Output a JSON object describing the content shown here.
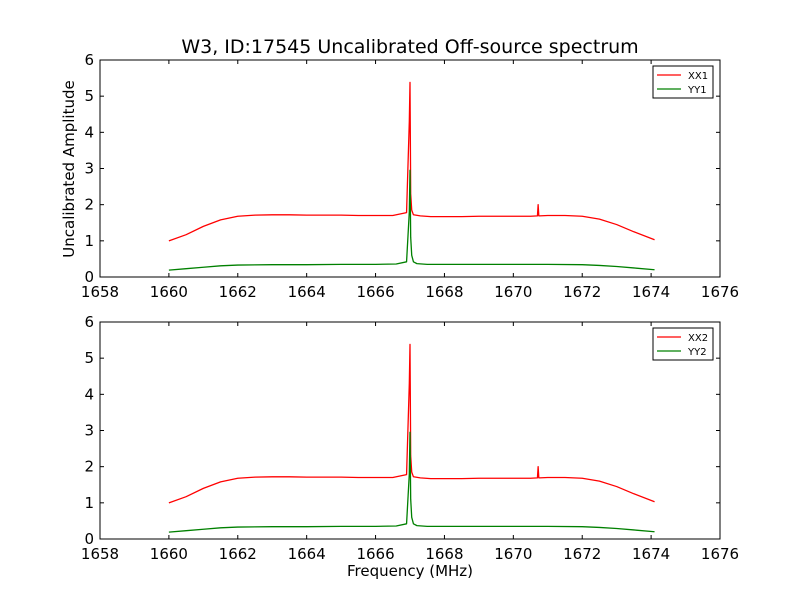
{
  "figure": {
    "title": "W3, ID:17545 Uncalibrated Off-source spectrum",
    "ylabel": "Uncalibrated Amplitude",
    "xlabel": "Frequency (MHz)"
  },
  "chart_data": [
    {
      "type": "line",
      "xlim": [
        1658,
        1676
      ],
      "ylim": [
        0,
        6
      ],
      "xticks": [
        1658,
        1660,
        1662,
        1664,
        1666,
        1668,
        1670,
        1672,
        1674,
        1676
      ],
      "yticks": [
        0,
        1,
        2,
        3,
        4,
        5,
        6
      ],
      "legend": "top-right",
      "series": [
        {
          "name": "XX1",
          "color": "#ff0000",
          "x": [
            1660.0,
            1660.5,
            1661.0,
            1661.5,
            1662.0,
            1662.5,
            1663.0,
            1663.5,
            1664.0,
            1664.5,
            1665.0,
            1665.5,
            1666.0,
            1666.5,
            1666.9,
            1666.98,
            1667.0,
            1667.02,
            1667.05,
            1667.1,
            1667.3,
            1667.6,
            1668.0,
            1668.5,
            1669.0,
            1669.5,
            1670.0,
            1670.5,
            1670.7,
            1670.72,
            1670.74,
            1670.76,
            1671.0,
            1671.5,
            1672.0,
            1672.5,
            1673.0,
            1673.5,
            1674.1
          ],
          "values": [
            1.0,
            1.17,
            1.4,
            1.58,
            1.68,
            1.71,
            1.72,
            1.72,
            1.71,
            1.71,
            1.71,
            1.7,
            1.7,
            1.7,
            1.78,
            4.3,
            5.38,
            2.3,
            1.85,
            1.72,
            1.69,
            1.67,
            1.67,
            1.67,
            1.68,
            1.68,
            1.68,
            1.68,
            1.69,
            2.0,
            1.69,
            1.69,
            1.7,
            1.7,
            1.68,
            1.6,
            1.45,
            1.25,
            1.03
          ]
        },
        {
          "name": "YY1",
          "color": "#008000",
          "x": [
            1660.0,
            1660.5,
            1661.0,
            1661.5,
            1662.0,
            1663.0,
            1664.0,
            1665.0,
            1666.0,
            1666.6,
            1666.9,
            1666.98,
            1667.0,
            1667.02,
            1667.05,
            1667.1,
            1667.2,
            1667.5,
            1668.0,
            1669.0,
            1670.0,
            1671.0,
            1672.0,
            1672.5,
            1673.0,
            1673.5,
            1674.1
          ],
          "values": [
            0.19,
            0.23,
            0.27,
            0.31,
            0.33,
            0.34,
            0.34,
            0.35,
            0.35,
            0.36,
            0.42,
            1.8,
            2.95,
            1.1,
            0.6,
            0.42,
            0.37,
            0.35,
            0.35,
            0.35,
            0.35,
            0.35,
            0.34,
            0.32,
            0.29,
            0.25,
            0.2
          ]
        }
      ]
    },
    {
      "type": "line",
      "xlim": [
        1658,
        1676
      ],
      "ylim": [
        0,
        6
      ],
      "xticks": [
        1658,
        1660,
        1662,
        1664,
        1666,
        1668,
        1670,
        1672,
        1674,
        1676
      ],
      "yticks": [
        0,
        1,
        2,
        3,
        4,
        5,
        6
      ],
      "legend": "top-right",
      "series": [
        {
          "name": "XX2",
          "color": "#ff0000",
          "x": [
            1660.0,
            1660.5,
            1661.0,
            1661.5,
            1662.0,
            1662.5,
            1663.0,
            1663.5,
            1664.0,
            1664.5,
            1665.0,
            1665.5,
            1666.0,
            1666.5,
            1666.9,
            1666.98,
            1667.0,
            1667.02,
            1667.05,
            1667.1,
            1667.3,
            1667.6,
            1668.0,
            1668.5,
            1669.0,
            1669.5,
            1670.0,
            1670.5,
            1670.7,
            1670.72,
            1670.74,
            1670.76,
            1671.0,
            1671.5,
            1672.0,
            1672.5,
            1673.0,
            1673.5,
            1674.1
          ],
          "values": [
            1.0,
            1.17,
            1.4,
            1.58,
            1.68,
            1.71,
            1.72,
            1.72,
            1.71,
            1.71,
            1.71,
            1.7,
            1.7,
            1.7,
            1.78,
            4.3,
            5.38,
            2.3,
            1.85,
            1.72,
            1.69,
            1.67,
            1.67,
            1.67,
            1.68,
            1.68,
            1.68,
            1.68,
            1.69,
            2.0,
            1.69,
            1.69,
            1.7,
            1.7,
            1.68,
            1.6,
            1.45,
            1.25,
            1.03
          ]
        },
        {
          "name": "YY2",
          "color": "#008000",
          "x": [
            1660.0,
            1660.5,
            1661.0,
            1661.5,
            1662.0,
            1663.0,
            1664.0,
            1665.0,
            1666.0,
            1666.6,
            1666.9,
            1666.98,
            1667.0,
            1667.02,
            1667.05,
            1667.1,
            1667.2,
            1667.5,
            1668.0,
            1669.0,
            1670.0,
            1671.0,
            1672.0,
            1672.5,
            1673.0,
            1673.5,
            1674.1
          ],
          "values": [
            0.19,
            0.23,
            0.27,
            0.31,
            0.33,
            0.34,
            0.34,
            0.35,
            0.35,
            0.36,
            0.42,
            1.8,
            2.95,
            1.1,
            0.6,
            0.42,
            0.37,
            0.35,
            0.35,
            0.35,
            0.35,
            0.35,
            0.34,
            0.32,
            0.29,
            0.25,
            0.2
          ]
        }
      ]
    }
  ]
}
